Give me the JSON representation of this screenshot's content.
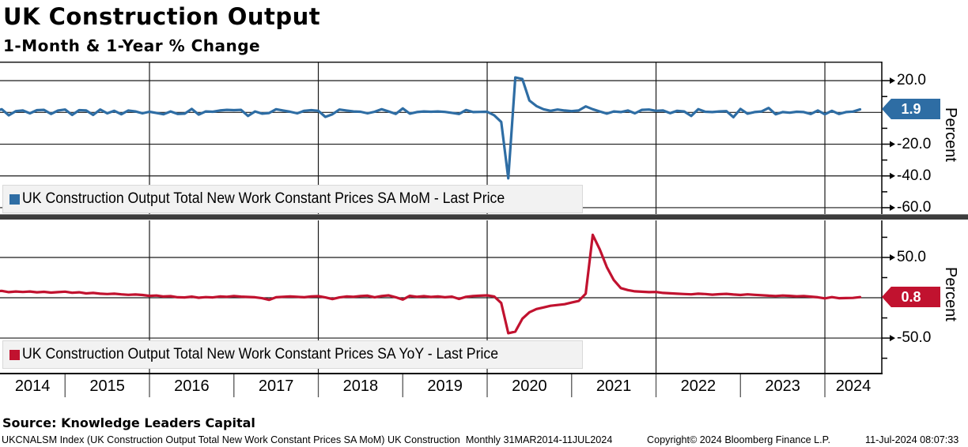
{
  "header": {
    "title": "UK Construction Output",
    "subtitle": "1-Month & 1-Year % Change"
  },
  "top_panel": {
    "legend_label": "UK Construction Output Total New Work Constant Prices SA MoM - Last Price",
    "tag_value": "1.9",
    "axis_title": "Percent"
  },
  "bottom_panel": {
    "legend_label": "UK Construction Output Total New Work Constant Prices SA YoY - Last Price",
    "tag_value": "0.8",
    "axis_title": "Percent"
  },
  "x_axis": {
    "year_labels": [
      "2014",
      "2015",
      "2016",
      "2017",
      "2018",
      "2019",
      "2020",
      "2021",
      "2022",
      "2023",
      "2024"
    ]
  },
  "footer": {
    "source": "Source: Knowledge Leaders Capital",
    "ticker_line": "UKCNALSM Index (UK Construction Output Total New Work Constant Prices SA MoM) UK Construction  Monthly 31MAR2014-11JUL2024",
    "copyright": "Copyright© 2024 Bloomberg Finance L.P.",
    "timestamp": "11-Jul-2024 08:07:33"
  },
  "colors": {
    "mom_line": "#2e6da4",
    "yoy_line": "#c1122f",
    "grid": "#1a1a1a",
    "legend_bg": "#f2f2f2",
    "separator": "#3d3d3d"
  },
  "chart_data": [
    {
      "type": "line",
      "title": "UK Construction Output Total New Work Constant Prices SA MoM - Last Price",
      "ylabel": "Percent",
      "frequency": "monthly",
      "x_start": "2014-03",
      "x_end": "2024-06",
      "last_price": 1.9,
      "ylim": [
        -64,
        32
      ],
      "ytick_labels": [
        "20.0",
        "-20.0",
        "-40.0",
        "-60.0"
      ],
      "ytick_values": [
        20,
        -20,
        -40,
        -60
      ],
      "minor_tick_values": [
        10,
        -10,
        -30,
        -50
      ],
      "gridline_values": [
        20,
        0,
        -20,
        -40,
        -60
      ],
      "values": [
        0.5,
        2.0,
        -1.8,
        0.8,
        1.2,
        -0.6,
        1.4,
        1.6,
        -1.0,
        1.2,
        1.8,
        -1.6,
        1.4,
        1.2,
        -1.6,
        1.8,
        -0.6,
        1.0,
        -1.2,
        1.2,
        0.6,
        -0.6,
        0.4,
        -0.4,
        -1.2,
        0.6,
        -1.0,
        -0.8,
        2.2,
        -1.4,
        0.6,
        0.4,
        1.2,
        1.6,
        1.4,
        1.6,
        -2.2,
        0.6,
        -0.8,
        -0.4,
        2.0,
        1.2,
        0.4,
        -0.6,
        1.0,
        1.4,
        1.0,
        -2.8,
        -1.2,
        1.8,
        1.2,
        0.6,
        0.4,
        -0.6,
        0.4,
        2.0,
        0.6,
        -1.0,
        2.5,
        -0.8,
        0.2,
        0.6,
        0.4,
        0.6,
        0.3,
        -0.3,
        -1.0,
        1.5,
        0.2,
        0.3,
        0.4,
        -1.8,
        -6.0,
        -41.5,
        22.0,
        21.0,
        7.5,
        4.0,
        2.0,
        1.0,
        1.8,
        1.2,
        0.8,
        1.2,
        3.8,
        2.0,
        0.6,
        -0.8,
        0.6,
        0.2,
        1.2,
        -0.6,
        1.6,
        1.8,
        1.0,
        1.2,
        -0.5,
        1.0,
        0.6,
        -2.2,
        2.0,
        0.4,
        0.2,
        0.6,
        0.8,
        -3.0,
        2.2,
        -0.8,
        0.2,
        0.6,
        2.8,
        -1.2,
        0.2,
        -0.2,
        0.4,
        0.2,
        -1.0,
        1.2,
        -1.2,
        1.0,
        -1.0,
        0.2,
        0.5,
        1.9
      ]
    },
    {
      "type": "line",
      "title": "UK Construction Output Total New Work Constant Prices SA YoY - Last Price",
      "ylabel": "Percent",
      "frequency": "monthly",
      "x_start": "2014-03",
      "x_end": "2024-06",
      "last_price": 0.8,
      "ylim": [
        -94,
        96
      ],
      "ytick_labels": [
        "50.0",
        "-50.0"
      ],
      "ytick_values": [
        50,
        -50
      ],
      "minor_tick_values": [
        75,
        25,
        -25,
        -75
      ],
      "gridline_values": [
        50,
        0,
        -50
      ],
      "values": [
        8.0,
        8.5,
        7.0,
        7.8,
        7.2,
        7.8,
        6.8,
        7.4,
        6.4,
        7.0,
        7.6,
        6.2,
        6.8,
        5.4,
        6.0,
        5.0,
        4.6,
        5.0,
        4.2,
        3.6,
        4.0,
        3.4,
        2.4,
        2.8,
        1.6,
        2.0,
        0.6,
        0.4,
        1.4,
        0.0,
        0.8,
        0.4,
        1.6,
        1.2,
        2.2,
        1.4,
        1.0,
        0.6,
        -0.6,
        -2.6,
        0.6,
        1.2,
        1.6,
        1.2,
        0.6,
        1.6,
        2.0,
        0.4,
        -1.6,
        0.4,
        1.6,
        1.2,
        2.2,
        2.6,
        0.6,
        2.2,
        3.0,
        0.6,
        -2.2,
        2.4,
        1.2,
        2.0,
        1.0,
        1.6,
        0.6,
        1.4,
        -1.4,
        1.2,
        2.2,
        2.6,
        3.0,
        1.6,
        -6.5,
        -44.0,
        -42.0,
        -26.0,
        -18.0,
        -14.0,
        -12.0,
        -10.0,
        -9.0,
        -8.0,
        -6.0,
        -4.0,
        5.0,
        78.0,
        60.0,
        38.0,
        22.0,
        12.0,
        9.5,
        8.0,
        7.5,
        7.0,
        7.2,
        6.0,
        5.5,
        5.0,
        4.6,
        4.2,
        5.0,
        4.6,
        3.8,
        4.4,
        4.8,
        4.0,
        3.4,
        4.2,
        3.6,
        3.2,
        2.6,
        2.2,
        2.8,
        2.4,
        1.8,
        2.2,
        1.4,
        0.6,
        -0.8,
        0.8,
        -0.6,
        -0.4,
        -0.2,
        0.8
      ]
    }
  ]
}
